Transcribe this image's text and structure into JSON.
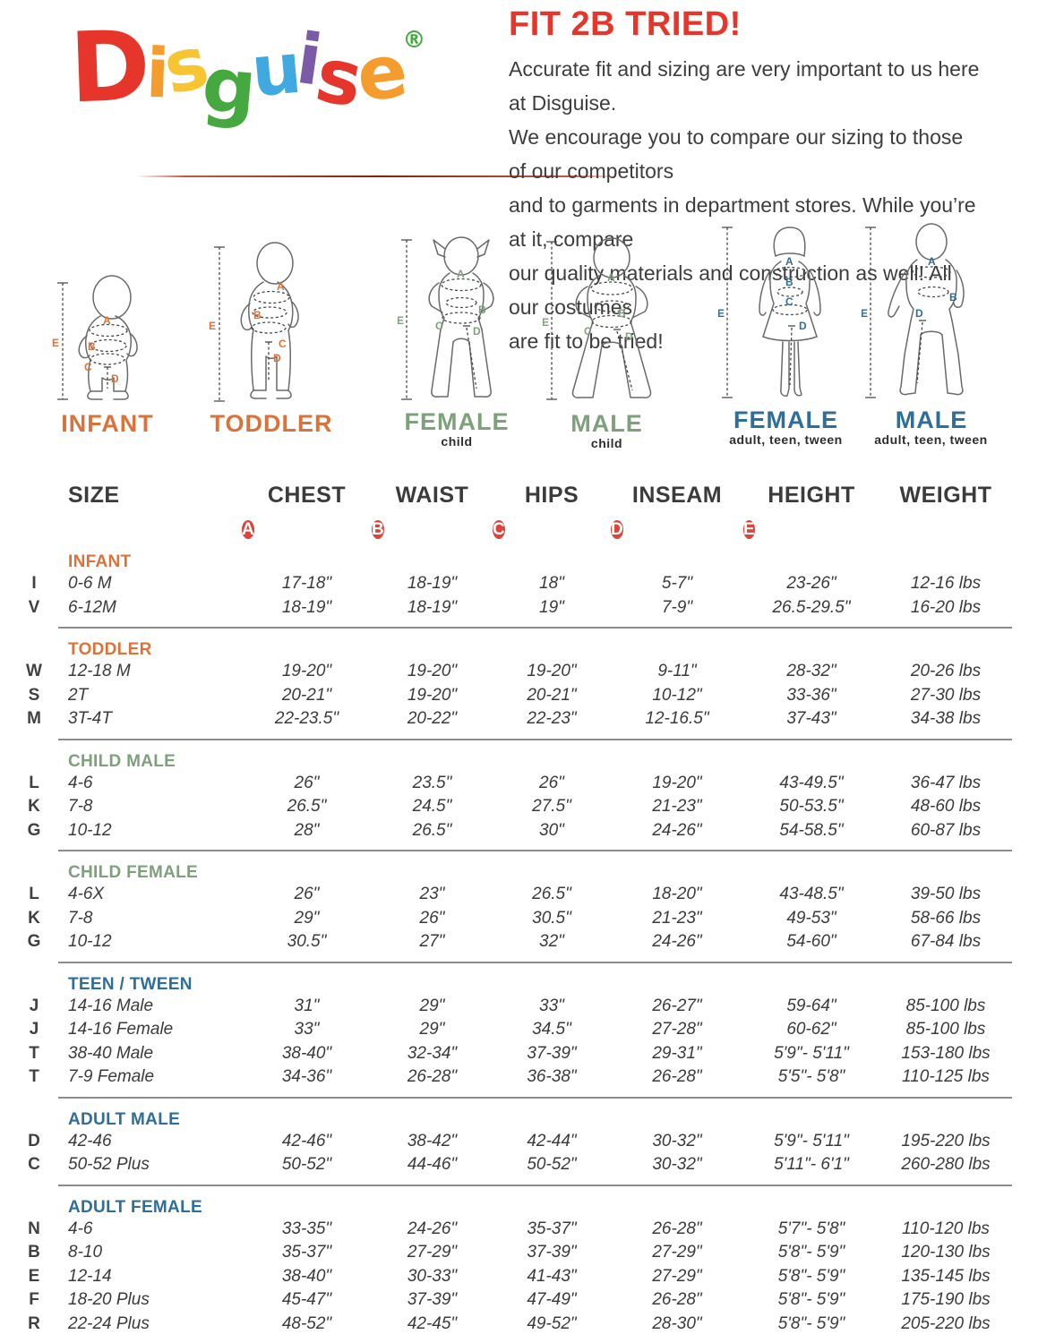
{
  "theme": {
    "red": "#E6352B",
    "orange": "#DB7239",
    "green": "#7EA17C",
    "blue": "#2F6E99",
    "badge": "#D9453B",
    "text": "#3B3B3B",
    "divider": "#8C8C8C"
  },
  "logo": {
    "letters": [
      {
        "ch": "D",
        "color": "#E6352B"
      },
      {
        "ch": "i",
        "color": "#F49C2D"
      },
      {
        "ch": "s",
        "color": "#F7C531"
      },
      {
        "ch": "g",
        "color": "#46A940"
      },
      {
        "ch": "u",
        "color": "#3FA9E0"
      },
      {
        "ch": "i",
        "color": "#7B5AA6"
      },
      {
        "ch": "s",
        "color": "#E6352B"
      },
      {
        "ch": "e",
        "color": "#F49C2D"
      }
    ],
    "registered": "®",
    "registered_color": "#46A940"
  },
  "header": {
    "title": "FIT 2B TRIED!",
    "intro_lines": [
      "Accurate fit and sizing are very important to us here at Disguise.",
      "We encourage you to compare our sizing to those of our competitors",
      "and to garments in department stores. While you’re at it, compare",
      "our quality materials and construction as well! All our costumes",
      "are fit to be tried!"
    ]
  },
  "measures": [
    "A",
    "B",
    "C",
    "D",
    "E"
  ],
  "figures": [
    {
      "name": "INFANT",
      "sub": "",
      "group": "orange"
    },
    {
      "name": "TODDLER",
      "sub": "",
      "group": "orange"
    },
    {
      "name": "FEMALE",
      "sub": "child",
      "group": "green"
    },
    {
      "name": "MALE",
      "sub": "child",
      "group": "green"
    },
    {
      "name": "FEMALE",
      "sub": "adult, teen, tween",
      "group": "blue"
    },
    {
      "name": "MALE",
      "sub": "adult, teen, tween",
      "group": "blue"
    }
  ],
  "table": {
    "columns": [
      "SIZE",
      "CHEST",
      "WAIST",
      "HIPS",
      "INSEAM",
      "HEIGHT",
      "WEIGHT"
    ],
    "badges": [
      "A",
      "B",
      "C",
      "D",
      "E"
    ],
    "sections": [
      {
        "title": "INFANT",
        "color": "orange",
        "rows": [
          {
            "code": "I",
            "size": "0-6 M",
            "values": [
              "17-18\"",
              "18-19\"",
              "18\"",
              "5-7\"",
              "23-26\"",
              "12-16 lbs"
            ]
          },
          {
            "code": "V",
            "size": "6-12M",
            "values": [
              "18-19\"",
              "18-19\"",
              "19\"",
              "7-9\"",
              "26.5-29.5\"",
              "16-20 lbs"
            ]
          }
        ]
      },
      {
        "title": "TODDLER",
        "color": "orange",
        "rows": [
          {
            "code": "W",
            "size": "12-18 M",
            "values": [
              "19-20\"",
              "19-20\"",
              "19-20\"",
              "9-11\"",
              "28-32\"",
              "20-26 lbs"
            ]
          },
          {
            "code": "S",
            "size": "2T",
            "values": [
              "20-21\"",
              "19-20\"",
              "20-21\"",
              "10-12\"",
              "33-36\"",
              "27-30 lbs"
            ]
          },
          {
            "code": "M",
            "size": "3T-4T",
            "values": [
              "22-23.5\"",
              "20-22\"",
              "22-23\"",
              "12-16.5\"",
              "37-43\"",
              "34-38 lbs"
            ]
          }
        ]
      },
      {
        "title": "CHILD MALE",
        "color": "green",
        "rows": [
          {
            "code": "L",
            "size": "4-6",
            "values": [
              "26\"",
              "23.5\"",
              "26\"",
              "19-20\"",
              "43-49.5\"",
              "36-47 lbs"
            ]
          },
          {
            "code": "K",
            "size": "7-8",
            "values": [
              "26.5\"",
              "24.5\"",
              "27.5\"",
              "21-23\"",
              "50-53.5\"",
              "48-60 lbs"
            ]
          },
          {
            "code": "G",
            "size": "10-12",
            "values": [
              "28\"",
              "26.5\"",
              "30\"",
              "24-26\"",
              "54-58.5\"",
              "60-87 lbs"
            ]
          }
        ]
      },
      {
        "title": "CHILD FEMALE",
        "color": "green",
        "rows": [
          {
            "code": "L",
            "size": "4-6X",
            "values": [
              "26\"",
              "23\"",
              "26.5\"",
              "18-20\"",
              "43-48.5\"",
              "39-50 lbs"
            ]
          },
          {
            "code": "K",
            "size": "7-8",
            "values": [
              "29\"",
              "26\"",
              "30.5\"",
              "21-23\"",
              "49-53\"",
              "58-66 lbs"
            ]
          },
          {
            "code": "G",
            "size": "10-12",
            "values": [
              "30.5\"",
              "27\"",
              "32\"",
              "24-26\"",
              "54-60\"",
              "67-84 lbs"
            ]
          }
        ]
      },
      {
        "title": "TEEN / TWEEN",
        "color": "blue",
        "rows": [
          {
            "code": "J",
            "size": "14-16 Male",
            "values": [
              "31\"",
              "29\"",
              "33\"",
              "26-27\"",
              "59-64\"",
              "85-100 lbs"
            ]
          },
          {
            "code": "J",
            "size": "14-16 Female",
            "values": [
              "33\"",
              "29\"",
              "34.5\"",
              "27-28\"",
              "60-62\"",
              "85-100 lbs"
            ]
          },
          {
            "code": "T",
            "size": "38-40 Male",
            "values": [
              "38-40\"",
              "32-34\"",
              "37-39\"",
              "29-31\"",
              "5'9\"- 5'11\"",
              "153-180 lbs"
            ]
          },
          {
            "code": "T",
            "size": "7-9 Female",
            "values": [
              "34-36\"",
              "26-28\"",
              "36-38\"",
              "26-28\"",
              "5'5\"- 5'8\"",
              "110-125 lbs"
            ]
          }
        ]
      },
      {
        "title": "ADULT MALE",
        "color": "blue",
        "rows": [
          {
            "code": "D",
            "size": "42-46",
            "values": [
              "42-46\"",
              "38-42\"",
              "42-44\"",
              "30-32\"",
              "5'9\"- 5'11\"",
              "195-220 lbs"
            ]
          },
          {
            "code": "C",
            "size": "50-52 Plus",
            "values": [
              "50-52\"",
              "44-46\"",
              "50-52\"",
              "30-32\"",
              "5'11\"- 6'1\"",
              "260-280 lbs"
            ]
          }
        ]
      },
      {
        "title": "ADULT FEMALE",
        "color": "blue",
        "rows": [
          {
            "code": "N",
            "size": "4-6",
            "values": [
              "33-35\"",
              "24-26\"",
              "35-37\"",
              "26-28\"",
              "5'7\"- 5'8\"",
              "110-120 lbs"
            ]
          },
          {
            "code": "B",
            "size": "8-10",
            "values": [
              "35-37\"",
              "27-29\"",
              "37-39\"",
              "27-29\"",
              "5'8\"- 5'9\"",
              "120-130 lbs"
            ]
          },
          {
            "code": "E",
            "size": "12-14",
            "values": [
              "38-40\"",
              "30-33\"",
              "41-43\"",
              "27-29\"",
              "5'8\"- 5'9\"",
              "135-145 lbs"
            ]
          },
          {
            "code": "F",
            "size": "18-20 Plus",
            "values": [
              "45-47\"",
              "37-39\"",
              "47-49\"",
              "26-28\"",
              "5'8\"- 5'9\"",
              "175-190 lbs"
            ]
          },
          {
            "code": "R",
            "size": "22-24 Plus",
            "values": [
              "48-52\"",
              "42-45\"",
              "49-52\"",
              "28-30\"",
              "5'8\"- 5'9\"",
              "205-220 lbs"
            ]
          }
        ]
      }
    ]
  }
}
